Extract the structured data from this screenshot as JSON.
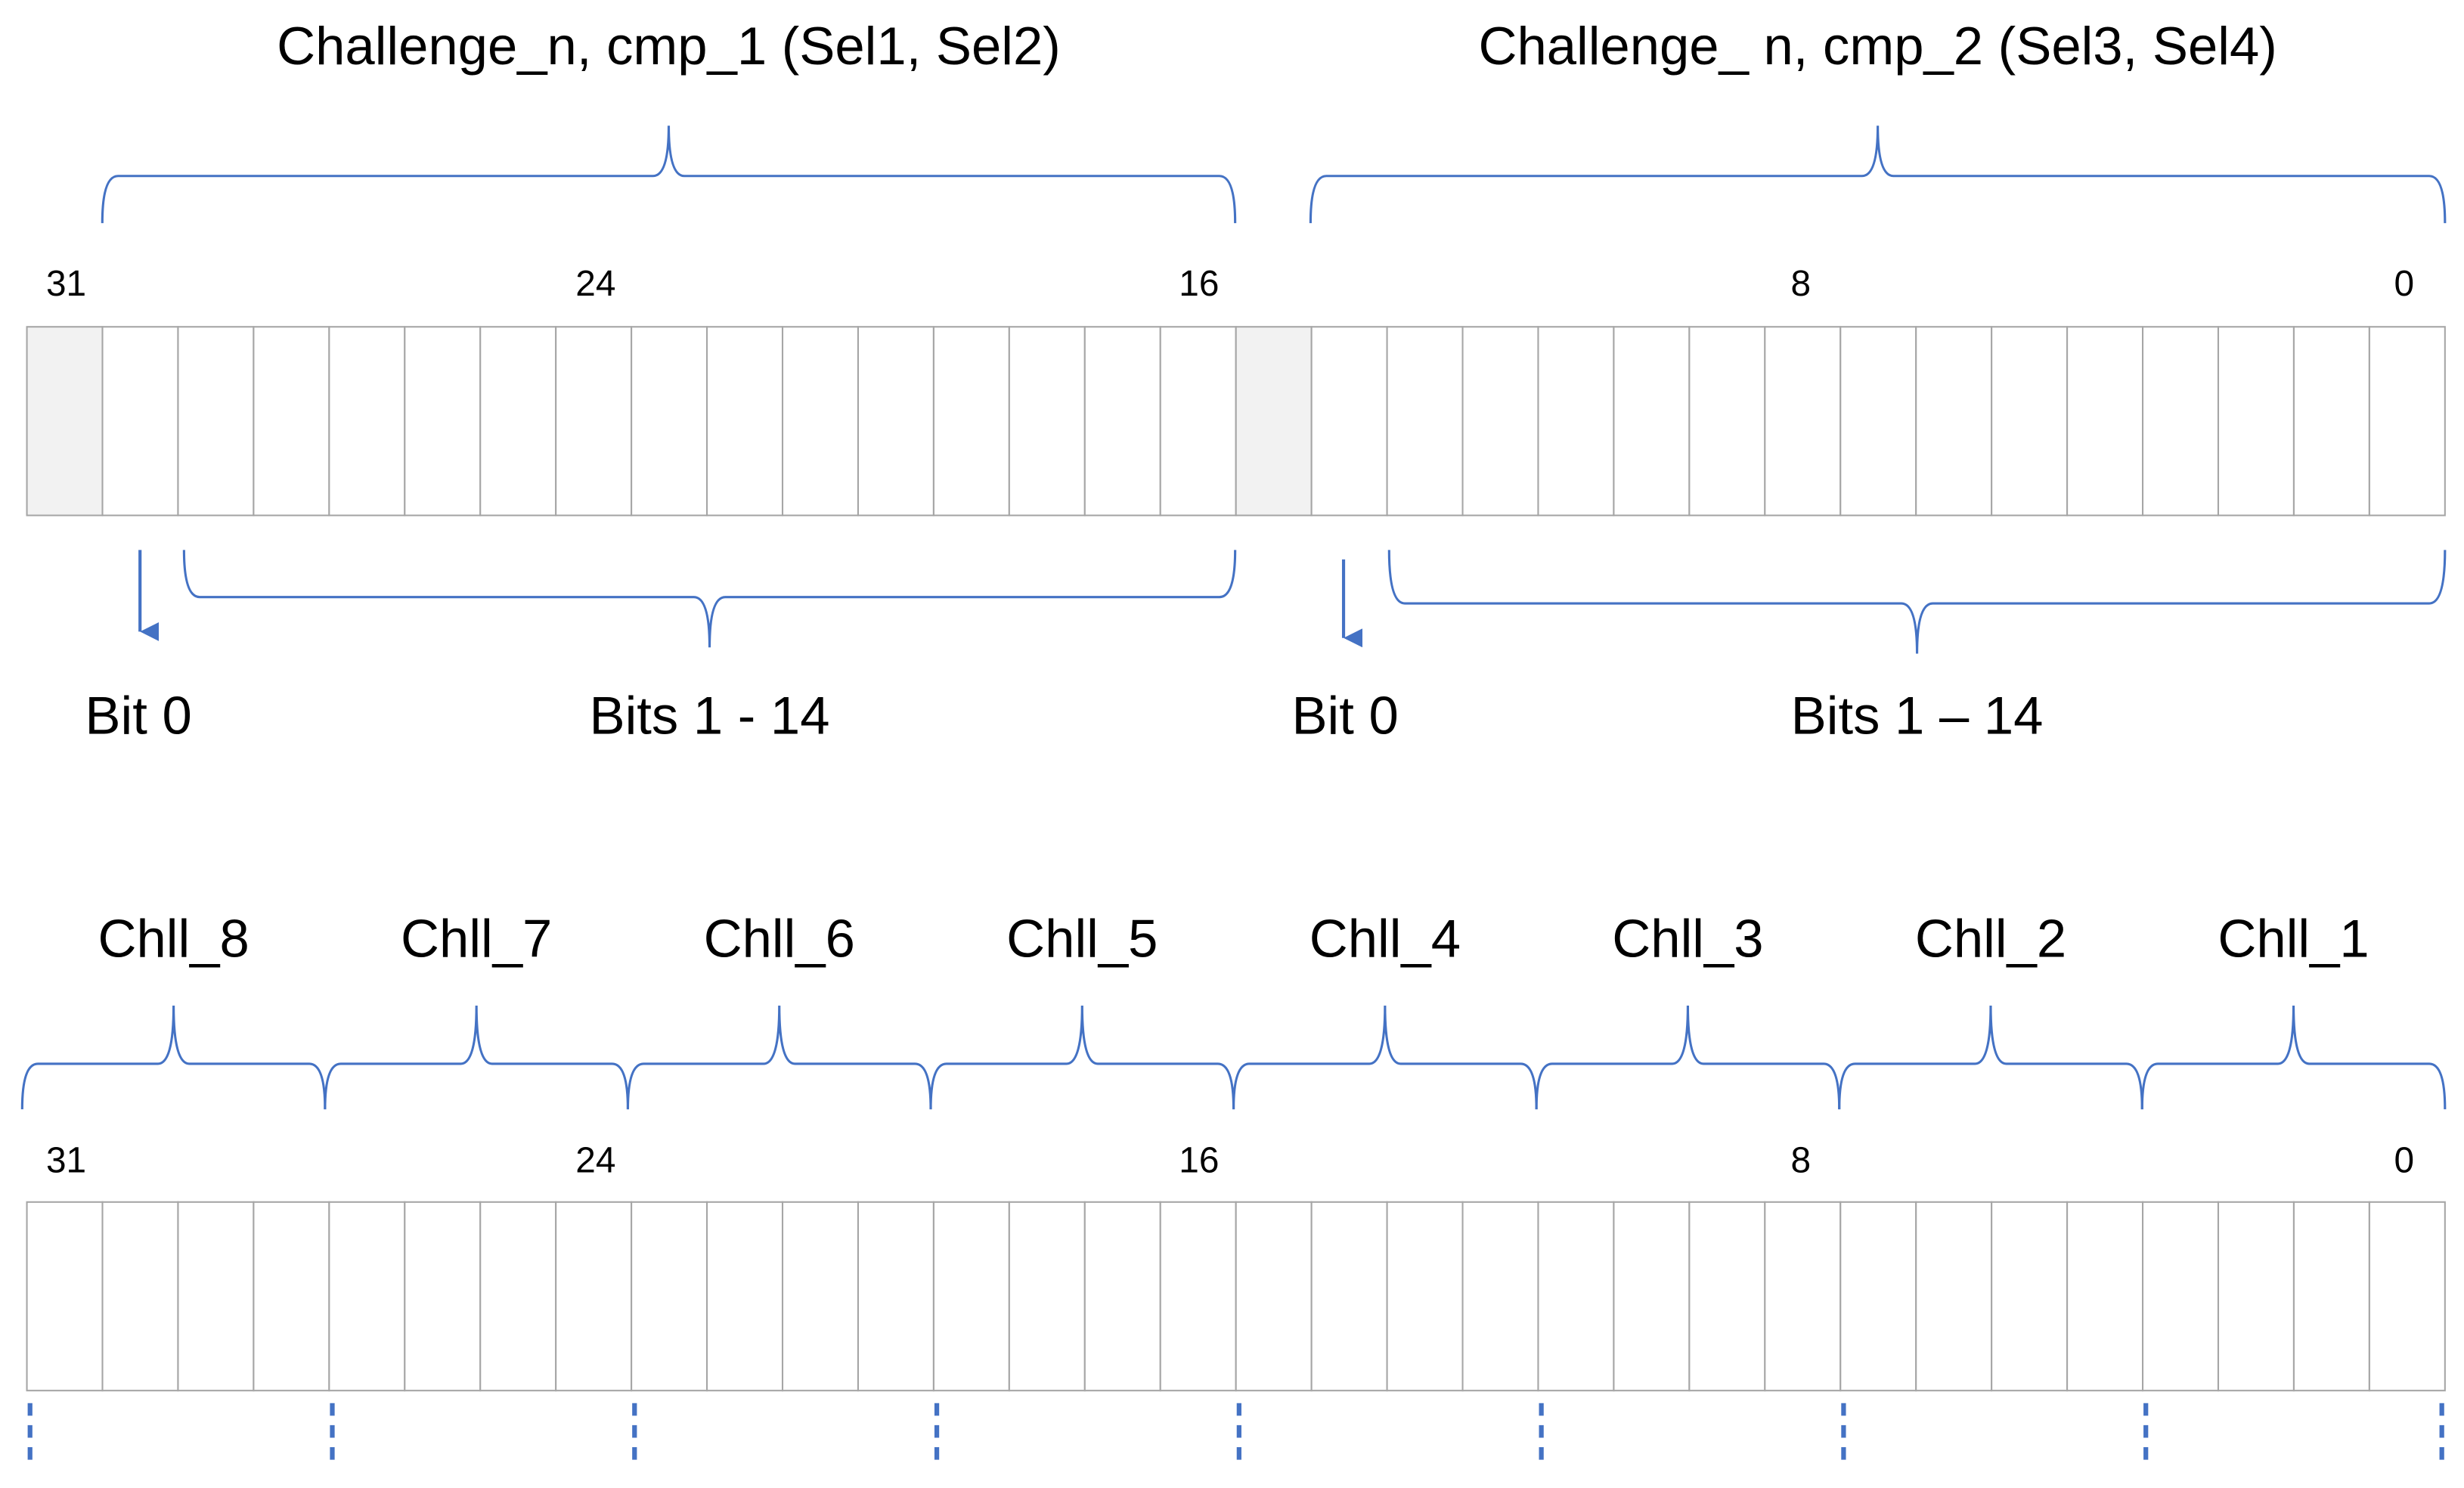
{
  "top": {
    "groups": [
      {
        "label": "Challenge_n,  cmp_1  (Sel1, Sel2)",
        "bit0_label": "Bit 0",
        "bits_label": "Bits 1 - 14"
      },
      {
        "label": "Challenge_ n,  cmp_2  (Sel3, Sel4)",
        "bit0_label": "Bit 0",
        "bits_label": "Bits 1 – 14"
      }
    ],
    "bit_numbers": [
      "31",
      "24",
      "16",
      "8",
      "0"
    ]
  },
  "bottom": {
    "chunks": [
      "Chll_8",
      "Chll_7",
      "Chll_6",
      "Chll_5",
      "Chll_4",
      "Chll_3",
      "Chll_2",
      "Chll_1"
    ],
    "bit_numbers": [
      "31",
      "24",
      "16",
      "8",
      "0"
    ]
  }
}
